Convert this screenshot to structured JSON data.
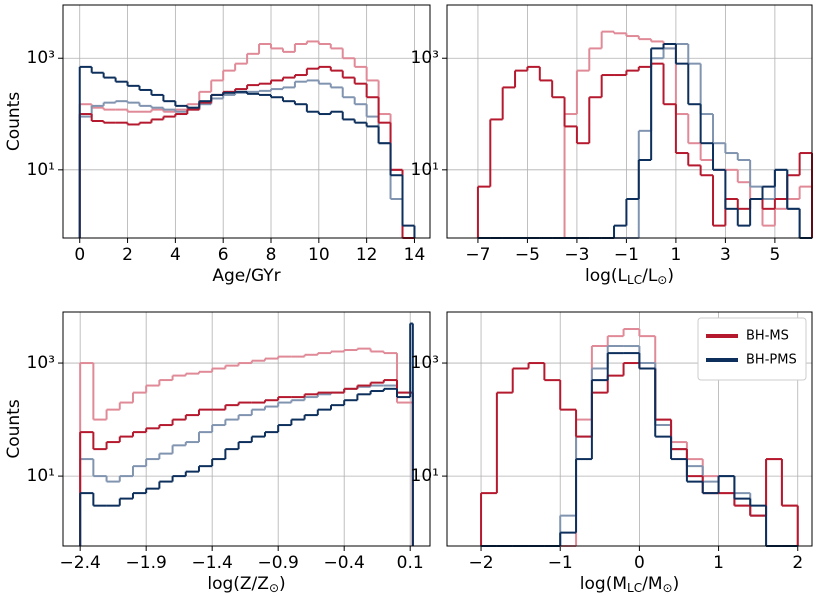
{
  "chart_data": [
    {
      "type": "histogram",
      "x_label": "Age/GYr",
      "y_label": "Counts",
      "log_y": true,
      "grid": true,
      "xlim": [
        -0.7,
        14.65
      ],
      "ylim": [
        0.6,
        9000
      ],
      "xticks": [
        0,
        2,
        4,
        6,
        8,
        10,
        12,
        14
      ],
      "yticks": [
        {
          "value": 10,
          "label": "10¹"
        },
        {
          "value": 1000,
          "label": "10³"
        }
      ],
      "bins": [
        0,
        0.5,
        1,
        1.5,
        2,
        2.5,
        3,
        3.5,
        4,
        4.5,
        5,
        5.5,
        6,
        6.5,
        7,
        7.5,
        8,
        8.5,
        9,
        9.5,
        10,
        10.5,
        11,
        11.5,
        12,
        12.5,
        13,
        13.5,
        14
      ],
      "series": [
        {
          "color": "#e08a97",
          "values": [
            150,
            130,
            120,
            120,
            110,
            110,
            120,
            110,
            120,
            150,
            250,
            400,
            600,
            800,
            1200,
            1800,
            1500,
            1300,
            1800,
            2000,
            1800,
            1500,
            1000,
            700,
            400,
            100,
            10,
            0
          ]
        },
        {
          "color": "#8094b0",
          "values": [
            90,
            140,
            160,
            170,
            160,
            140,
            130,
            120,
            110,
            120,
            150,
            190,
            220,
            240,
            250,
            260,
            280,
            300,
            380,
            400,
            350,
            300,
            200,
            150,
            90,
            30,
            3,
            0
          ]
        },
        {
          "color": "#b5192e",
          "values": [
            100,
            75,
            70,
            70,
            65,
            70,
            80,
            90,
            100,
            120,
            160,
            220,
            250,
            280,
            330,
            350,
            400,
            450,
            500,
            650,
            700,
            600,
            450,
            350,
            200,
            70,
            10,
            0
          ]
        },
        {
          "color": "#0d2f5c",
          "values": [
            700,
            550,
            450,
            380,
            320,
            270,
            220,
            170,
            140,
            130,
            170,
            220,
            240,
            250,
            230,
            220,
            200,
            170,
            150,
            110,
            100,
            110,
            80,
            70,
            60,
            30,
            8,
            1
          ]
        }
      ]
    },
    {
      "type": "histogram",
      "x_label": "log(L_{LC}/L_{⊙})",
      "log_y": true,
      "grid": true,
      "xlim": [
        -8.25,
        6.5
      ],
      "ylim": [
        0.6,
        9000
      ],
      "xticks": [
        {
          "value": -7,
          "label": "−7"
        },
        {
          "value": -5,
          "label": "−5"
        },
        {
          "value": -3,
          "label": "−3"
        },
        {
          "value": -1,
          "label": "−1"
        },
        1,
        3,
        5
      ],
      "yticks": [
        {
          "value": 10,
          "label": "10¹"
        },
        {
          "value": 1000,
          "label": "10³"
        }
      ],
      "bins": [
        -7,
        -6.5,
        -6,
        -5.5,
        -5,
        -4.5,
        -4,
        -3.5,
        -3,
        -2.5,
        -2,
        -1.5,
        -1,
        -0.5,
        0,
        0.5,
        1,
        1.5,
        2,
        2.5,
        3,
        3.5,
        4,
        4.5,
        5,
        5.5,
        6,
        6.5
      ],
      "series": [
        {
          "color": "#e08a97",
          "values": [
            0,
            0,
            0,
            0,
            0,
            0,
            0,
            100,
            600,
            1500,
            3000,
            2800,
            2500,
            2200,
            2000,
            1500,
            100,
            30,
            15,
            10,
            10,
            6,
            3,
            1,
            2,
            3,
            5
          ]
        },
        {
          "color": "#8094b0",
          "values": [
            0,
            0,
            0,
            0,
            0,
            0,
            0,
            0,
            0,
            0,
            0,
            0,
            0,
            50,
            1000,
            1500,
            1800,
            800,
            100,
            30,
            20,
            15,
            5,
            3,
            10,
            2,
            0
          ]
        },
        {
          "color": "#b5192e",
          "values": [
            5,
            80,
            300,
            600,
            700,
            400,
            200,
            60,
            30,
            200,
            500,
            500,
            600,
            700,
            800,
            150,
            20,
            12,
            8,
            1,
            3,
            2,
            3,
            2,
            3,
            8,
            20
          ]
        },
        {
          "color": "#0d2f5c",
          "values": [
            0,
            0,
            0,
            0,
            0,
            0,
            0,
            0,
            0,
            0,
            0,
            1,
            3,
            15,
            1500,
            1800,
            800,
            150,
            30,
            10,
            2,
            1,
            3,
            5,
            10,
            2,
            0
          ]
        }
      ]
    },
    {
      "type": "histogram",
      "x_label": "log(Z/Z_{⊙})",
      "y_label": "Counts",
      "log_y": true,
      "grid": true,
      "xlim": [
        -2.53,
        0.25
      ],
      "ylim": [
        0.58,
        8000
      ],
      "xticks": [
        {
          "value": -2.4,
          "label": "−2.4"
        },
        {
          "value": -1.9,
          "label": "−1.9"
        },
        {
          "value": -1.4,
          "label": "−1.4"
        },
        {
          "value": -0.9,
          "label": "−0.9"
        },
        {
          "value": -0.4,
          "label": "−0.4"
        },
        0.1
      ],
      "yticks": [
        {
          "value": 10,
          "label": "10¹"
        },
        {
          "value": 1000,
          "label": "10³"
        }
      ],
      "bins": [
        -2.4,
        -2.3,
        -2.2,
        -2.1,
        -2.0,
        -1.9,
        -1.8,
        -1.7,
        -1.6,
        -1.5,
        -1.4,
        -1.3,
        -1.2,
        -1.1,
        -1.0,
        -0.9,
        -0.8,
        -0.7,
        -0.6,
        -0.5,
        -0.4,
        -0.3,
        -0.2,
        -0.1,
        0.0,
        0.1,
        0.12
      ],
      "series": [
        {
          "color": "#e08a97",
          "values": [
            1000,
            100,
            150,
            200,
            300,
            400,
            500,
            600,
            650,
            700,
            800,
            900,
            1000,
            1100,
            1200,
            1300,
            1300,
            1400,
            1500,
            1600,
            1700,
            1800,
            1600,
            1500,
            200,
            200
          ]
        },
        {
          "color": "#8094b0",
          "values": [
            20,
            10,
            8,
            10,
            15,
            20,
            25,
            35,
            40,
            60,
            80,
            100,
            120,
            150,
            170,
            200,
            220,
            250,
            280,
            300,
            350,
            380,
            400,
            400,
            300,
            300
          ]
        },
        {
          "color": "#b5192e",
          "values": [
            60,
            30,
            40,
            50,
            60,
            70,
            80,
            100,
            120,
            150,
            150,
            180,
            200,
            200,
            220,
            250,
            250,
            280,
            300,
            300,
            350,
            400,
            450,
            500,
            300,
            300
          ]
        },
        {
          "color": "#0d2f5c",
          "values": [
            5,
            3,
            3,
            4,
            5,
            6,
            8,
            10,
            12,
            15,
            20,
            30,
            40,
            50,
            60,
            80,
            100,
            120,
            150,
            180,
            220,
            280,
            320,
            350,
            250,
            5000
          ]
        }
      ]
    },
    {
      "type": "histogram",
      "x_label": "log(M_{LC}/M_{⊙})",
      "log_y": true,
      "grid": true,
      "legend": "upper right",
      "xlim": [
        -2.43,
        2.18
      ],
      "ylim": [
        0.58,
        8000
      ],
      "xticks": [
        {
          "value": -2,
          "label": "−2"
        },
        {
          "value": -1,
          "label": "−1"
        },
        0,
        1,
        2
      ],
      "yticks": [
        {
          "value": 10,
          "label": "10¹"
        },
        {
          "value": 1000,
          "label": "10³"
        }
      ],
      "bins": [
        -2,
        -1.8,
        -1.6,
        -1.4,
        -1.2,
        -1,
        -0.8,
        -0.6,
        -0.4,
        -0.2,
        0,
        0.2,
        0.4,
        0.6,
        0.8,
        1,
        1.2,
        1.4,
        1.6,
        1.8,
        2
      ],
      "series": [
        {
          "color": "#e08a97",
          "values": [
            0,
            0,
            0,
            0,
            0,
            0,
            100,
            2000,
            3000,
            4000,
            3000,
            100,
            40,
            20,
            10,
            5,
            3,
            2,
            20,
            3
          ]
        },
        {
          "color": "#8094b0",
          "values": [
            0,
            0,
            0,
            0,
            0,
            2,
            50,
            800,
            2000,
            2000,
            1000,
            80,
            30,
            15,
            8,
            10,
            5,
            2,
            0,
            0
          ]
        },
        {
          "name": "BH-MS",
          "color": "#b5192e",
          "values": [
            5,
            300,
            800,
            1000,
            500,
            150,
            50,
            300,
            600,
            1000,
            800,
            100,
            30,
            10,
            5,
            5,
            3,
            2,
            20,
            3
          ]
        },
        {
          "name": "BH-PMS",
          "color": "#0d2f5c",
          "values": [
            0,
            0,
            0,
            0,
            0,
            1,
            20,
            500,
            1500,
            1500,
            800,
            50,
            20,
            8,
            5,
            10,
            4,
            3,
            0,
            0
          ]
        }
      ]
    }
  ]
}
